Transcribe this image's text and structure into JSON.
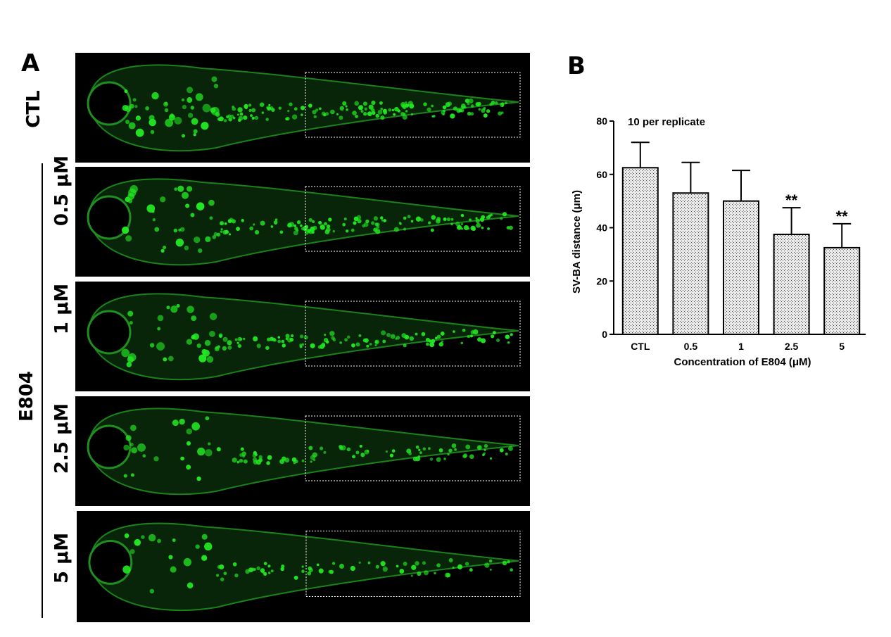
{
  "panel_a": {
    "letter": "A",
    "control_label": "CTL",
    "group_label": "E804",
    "images": [
      {
        "label": "",
        "kind": "ctl",
        "density": 1.0
      },
      {
        "label": "0.5 μM",
        "kind": "dose",
        "density": 0.85
      },
      {
        "label": "1 μM",
        "kind": "dose",
        "density": 0.7
      },
      {
        "label": "2.5 μM",
        "kind": "dose",
        "density": 0.55
      },
      {
        "label": "5 μM",
        "kind": "dose",
        "density": 0.45
      }
    ],
    "colors": {
      "background": "#000000",
      "fluorescence": "#22e822",
      "roi_box": "#ffffff"
    }
  },
  "panel_b": {
    "letter": "B"
  },
  "chart_data": {
    "type": "bar",
    "title": "",
    "annotation": "10 per replicate",
    "categories": [
      "CTL",
      "0.5",
      "1",
      "2.5",
      "5"
    ],
    "values": [
      62.5,
      53,
      50,
      37.5,
      32.5
    ],
    "errors": [
      9.5,
      11.5,
      11.5,
      10,
      9
    ],
    "significance": [
      "",
      "",
      "",
      "**",
      "**"
    ],
    "xlabel": "Concentration of E804 (μM)",
    "ylabel": "SV-BA distance (μm)",
    "ylim": [
      0,
      80
    ],
    "yticks": [
      0,
      20,
      40,
      60,
      80
    ],
    "bar_fill": "stippled grey",
    "grid": false,
    "legend": "none"
  }
}
